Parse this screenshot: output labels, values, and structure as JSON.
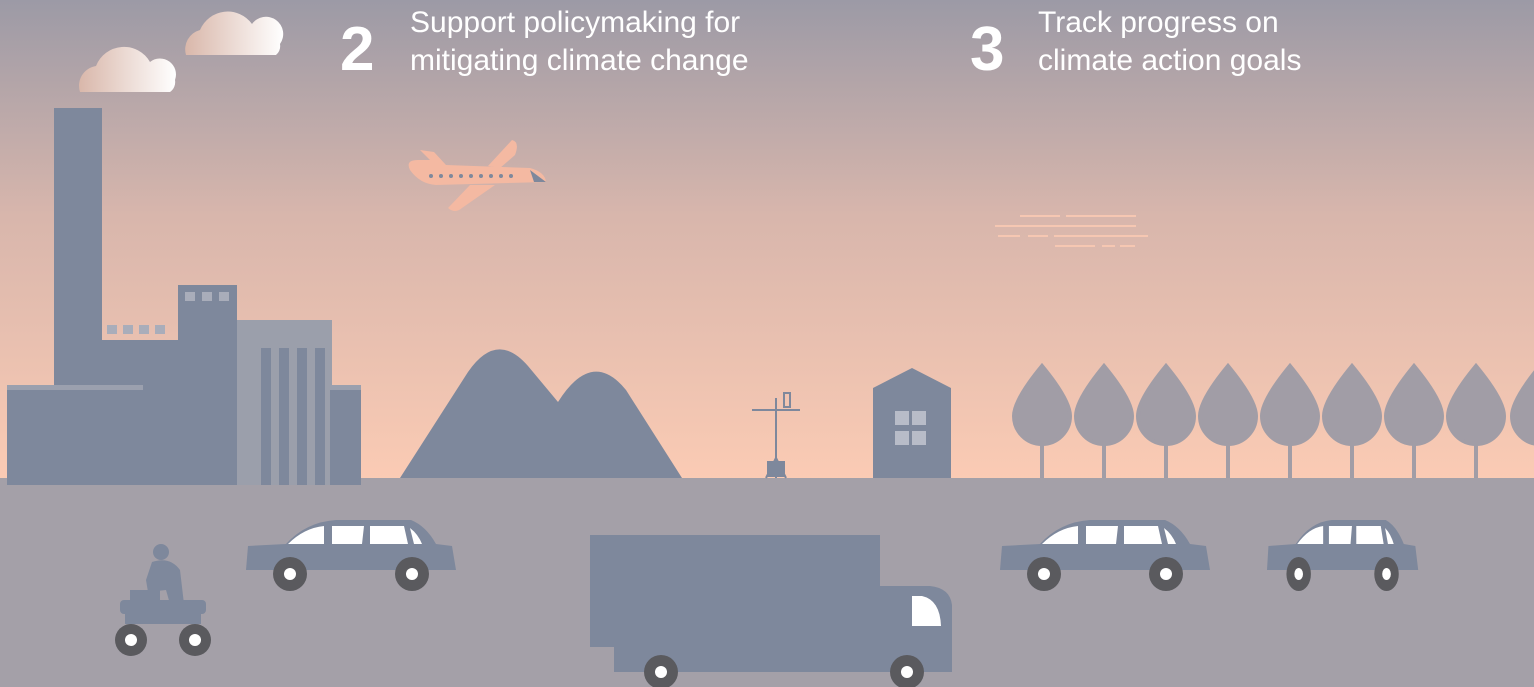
{
  "items": [
    {
      "number": 2,
      "lines": [
        "Support policymaking for",
        "mitigating climate change"
      ]
    },
    {
      "number": 3,
      "lines": [
        "Track progress on",
        "climate action goals"
      ]
    }
  ]
}
